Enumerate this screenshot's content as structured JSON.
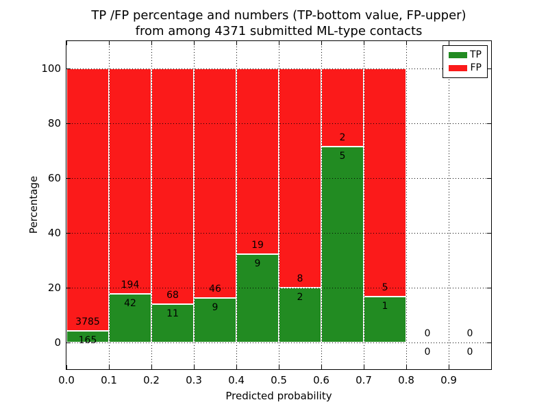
{
  "figure": {
    "title_line1": "TP /FP percentage and numbers (TP-bottom value, FP-upper)",
    "title_line2": "from among 4371 submitted ML-type contacts",
    "xlabel": "Predicted probability",
    "ylabel": "Percentage"
  },
  "legend": {
    "items": [
      {
        "label": "TP",
        "color": "#228b22"
      },
      {
        "label": "FP",
        "color": "#fb1a1a"
      }
    ]
  },
  "chart_data": {
    "type": "bar",
    "stacked": true,
    "title": "TP /FP percentage and numbers (TP-bottom value, FP-upper) from among 4371 submitted ML-type contacts",
    "xlabel": "Predicted probability",
    "ylabel": "Percentage",
    "total_contacts": 4371,
    "xlim": [
      0.0,
      1.0
    ],
    "ylim": [
      -10,
      110
    ],
    "x_ticks": [
      "0.0",
      "0.1",
      "0.2",
      "0.3",
      "0.4",
      "0.5",
      "0.6",
      "0.7",
      "0.8",
      "0.9"
    ],
    "y_ticks": [
      0,
      20,
      40,
      60,
      80,
      100
    ],
    "grid": true,
    "legend_position": "upper right",
    "colors": {
      "tp": "#228b22",
      "fp": "#fb1a1a",
      "bar_edge": "#ffffff"
    },
    "bins": [
      {
        "range": [
          0.0,
          0.1
        ],
        "tp": 165,
        "fp": 3785
      },
      {
        "range": [
          0.1,
          0.2
        ],
        "tp": 42,
        "fp": 194
      },
      {
        "range": [
          0.2,
          0.3
        ],
        "tp": 11,
        "fp": 68
      },
      {
        "range": [
          0.3,
          0.4
        ],
        "tp": 9,
        "fp": 46
      },
      {
        "range": [
          0.4,
          0.5
        ],
        "tp": 9,
        "fp": 19
      },
      {
        "range": [
          0.5,
          0.6
        ],
        "tp": 2,
        "fp": 8
      },
      {
        "range": [
          0.6,
          0.7
        ],
        "tp": 5,
        "fp": 2
      },
      {
        "range": [
          0.7,
          0.8
        ],
        "tp": 1,
        "fp": 5
      },
      {
        "range": [
          0.8,
          0.9
        ],
        "tp": 0,
        "fp": 0
      },
      {
        "range": [
          0.9,
          1.0
        ],
        "tp": 0,
        "fp": 0
      }
    ]
  }
}
